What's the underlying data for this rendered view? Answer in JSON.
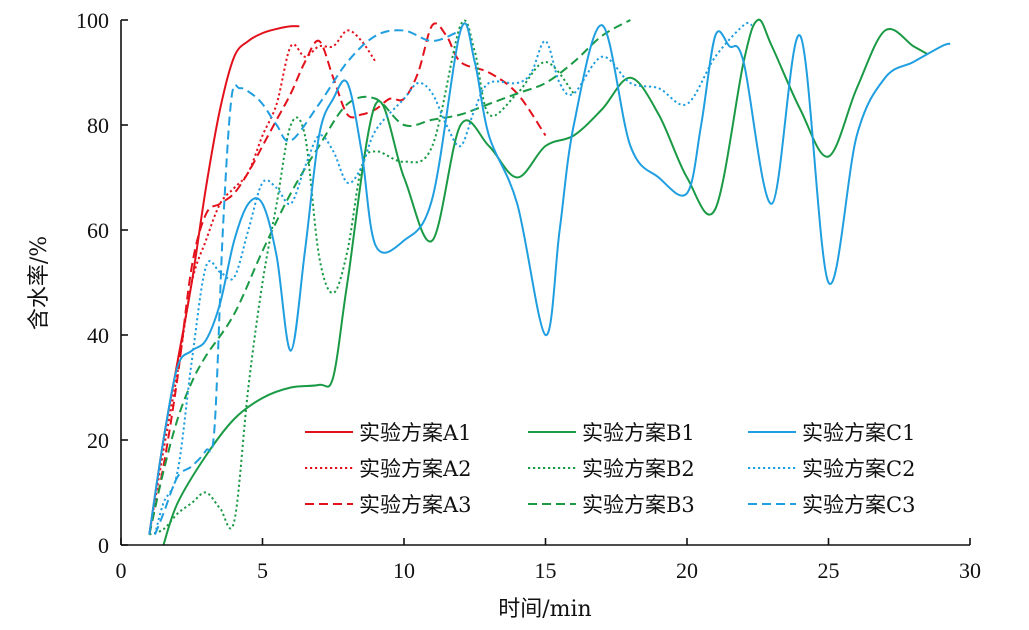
{
  "chart_data": {
    "type": "line",
    "xlabel": "时间/min",
    "ylabel": "含水率/%",
    "xlim": [
      0,
      30
    ],
    "ylim": [
      0,
      100
    ],
    "xticks": [
      0,
      5,
      10,
      15,
      20,
      25,
      30
    ],
    "yticks": [
      0,
      20,
      40,
      60,
      80,
      100
    ],
    "grid": false,
    "legend_position": "lower-right, inside plot, 3 columns",
    "series": [
      {
        "name": "实验方案A1",
        "color": "#e3111b",
        "dash": "solid",
        "x": [
          1.0,
          1.5,
          2.0,
          2.5,
          3.0,
          3.5,
          4.0,
          4.5,
          5.0,
          5.5,
          6.0,
          6.3
        ],
        "y": [
          2,
          20,
          35,
          50,
          68,
          83,
          93,
          96,
          97.5,
          98.3,
          98.8,
          98.8
        ]
      },
      {
        "name": "实验方案A2",
        "color": "#e3111b",
        "dash": "dot",
        "x": [
          1.0,
          1.5,
          2.0,
          2.5,
          3.0,
          3.5,
          4.0,
          4.5,
          5.0,
          5.5,
          6.0,
          6.5,
          7.0,
          7.5,
          8.0,
          8.5,
          9.0
        ],
        "y": [
          2,
          18,
          33,
          50,
          58,
          65,
          68,
          71,
          78,
          84,
          95,
          93,
          95,
          95,
          98,
          96,
          92
        ]
      },
      {
        "name": "实验方案A3",
        "color": "#e3111b",
        "dash": "dash",
        "x": [
          1.0,
          1.5,
          2.0,
          2.5,
          3.0,
          3.5,
          4.0,
          4.5,
          5.0,
          5.5,
          6.0,
          6.5,
          7.0,
          7.5,
          8.0,
          8.5,
          9.0,
          9.5,
          10.0,
          10.5,
          11.0,
          11.5,
          12.0,
          13.0,
          14.0,
          15.0
        ],
        "y": [
          2,
          15,
          32,
          53,
          63,
          65,
          67,
          71,
          76,
          81,
          86,
          92,
          96,
          89,
          82,
          82,
          83,
          85,
          85,
          90,
          99,
          97,
          92,
          90,
          86,
          78
        ]
      },
      {
        "name": "实验方案B1",
        "color": "#1a9a45",
        "dash": "solid",
        "x": [
          1.5,
          2.0,
          3.0,
          4.0,
          5.0,
          6.0,
          7.0,
          7.5,
          8.0,
          9.0,
          10.0,
          11.0,
          12.0,
          13.0,
          14.0,
          15.0,
          16.0,
          17.0,
          18.0,
          19.0,
          20.0,
          21.0,
          22.0,
          22.5,
          23.0,
          24.0,
          25.0,
          26.0,
          27.0,
          28.0,
          28.5
        ],
        "y": [
          0,
          8,
          17,
          24,
          28,
          30,
          30.5,
          32,
          50,
          84,
          70,
          58,
          80,
          76,
          70,
          76,
          78,
          83,
          89,
          82,
          70,
          64,
          92,
          100,
          95,
          83,
          74,
          87,
          98,
          95,
          93.5
        ]
      },
      {
        "name": "实验方案B2",
        "color": "#1a9a45",
        "dash": "dot",
        "x": [
          1.0,
          1.5,
          2.0,
          2.5,
          3.0,
          3.5,
          4.0,
          4.5,
          5.0,
          5.5,
          6.0,
          6.5,
          7.0,
          7.5,
          8.0,
          8.5,
          9.0,
          10.0,
          11.0,
          12.0,
          12.5,
          13.0,
          14.0,
          15.0,
          16.0
        ],
        "y": [
          2,
          3,
          6,
          8,
          10,
          7,
          4.5,
          30,
          50,
          65,
          80,
          78,
          55,
          48,
          56,
          72,
          75,
          73,
          76,
          99,
          94,
          82,
          86,
          92,
          86
        ]
      },
      {
        "name": "实验方案B3",
        "color": "#1a9a45",
        "dash": "dash",
        "x": [
          1.0,
          1.5,
          2.0,
          2.5,
          3.0,
          4.0,
          5.0,
          6.0,
          7.0,
          8.0,
          9.0,
          10.0,
          11.0,
          12.0,
          13.0,
          14.0,
          15.0,
          16.0,
          17.0,
          18.0
        ],
        "y": [
          2,
          14,
          24,
          31,
          36,
          44,
          56,
          67,
          76,
          84,
          85,
          80,
          81,
          82,
          84,
          86,
          88,
          92,
          97,
          100
        ]
      },
      {
        "name": "实验方案C1",
        "color": "#1f9ee0",
        "dash": "solid",
        "x": [
          1.0,
          1.5,
          2.0,
          2.5,
          3.0,
          3.5,
          4.0,
          4.5,
          5.0,
          5.5,
          6.0,
          6.5,
          7.0,
          7.5,
          8.0,
          8.5,
          9.0,
          10.0,
          11.0,
          12.0,
          12.5,
          13.0,
          14.0,
          15.0,
          15.5,
          16.0,
          17.0,
          18.0,
          19.0,
          20.0,
          20.5,
          21.0,
          21.5,
          22.0,
          23.0,
          24.0,
          25.0,
          26.0,
          27.0,
          28.0,
          29.0,
          29.3
        ],
        "y": [
          2,
          20,
          34,
          37,
          39,
          46,
          58,
          65,
          65,
          55,
          37,
          56,
          78,
          85,
          88,
          75,
          57,
          58,
          66,
          98,
          92,
          78,
          65,
          40,
          60,
          80,
          99,
          76,
          70,
          67,
          80,
          97,
          95,
          92,
          65,
          97,
          50,
          78,
          89,
          92,
          95,
          95.5
        ]
      },
      {
        "name": "实验方案C2",
        "color": "#1f9ee0",
        "dash": "dot",
        "x": [
          1.2,
          1.5,
          2.0,
          2.5,
          3.0,
          3.5,
          4.0,
          4.5,
          5.0,
          5.5,
          6.0,
          6.5,
          7.0,
          7.5,
          8.0,
          8.5,
          9.0,
          10.0,
          10.5,
          11.0,
          11.5,
          12.0,
          12.5,
          13.0,
          14.0,
          14.5,
          15.0,
          15.5,
          16.0,
          17.0,
          18.0,
          19.0,
          20.0,
          21.0,
          22.0,
          22.3
        ],
        "y": [
          2,
          8,
          14,
          35,
          53,
          52,
          51,
          60,
          69,
          68,
          65,
          72,
          78,
          75,
          69,
          72,
          79,
          85,
          88,
          86,
          80,
          76,
          83,
          88,
          88,
          90,
          96,
          88,
          86,
          93,
          88,
          87,
          84,
          93,
          99,
          99
        ]
      },
      {
        "name": "实验方案C3",
        "color": "#1f9ee0",
        "dash": "dash",
        "x": [
          1.2,
          1.5,
          2.0,
          2.5,
          3.0,
          3.3,
          3.6,
          3.9,
          4.2,
          4.6,
          5.0,
          5.5,
          6.0,
          7.0,
          8.0,
          9.0,
          10.0,
          11.0,
          12.0
        ],
        "y": [
          2,
          6,
          13,
          15,
          18,
          22,
          60,
          85,
          87,
          86,
          84,
          80,
          77,
          84,
          92,
          97,
          98,
          96,
          98
        ]
      }
    ]
  }
}
